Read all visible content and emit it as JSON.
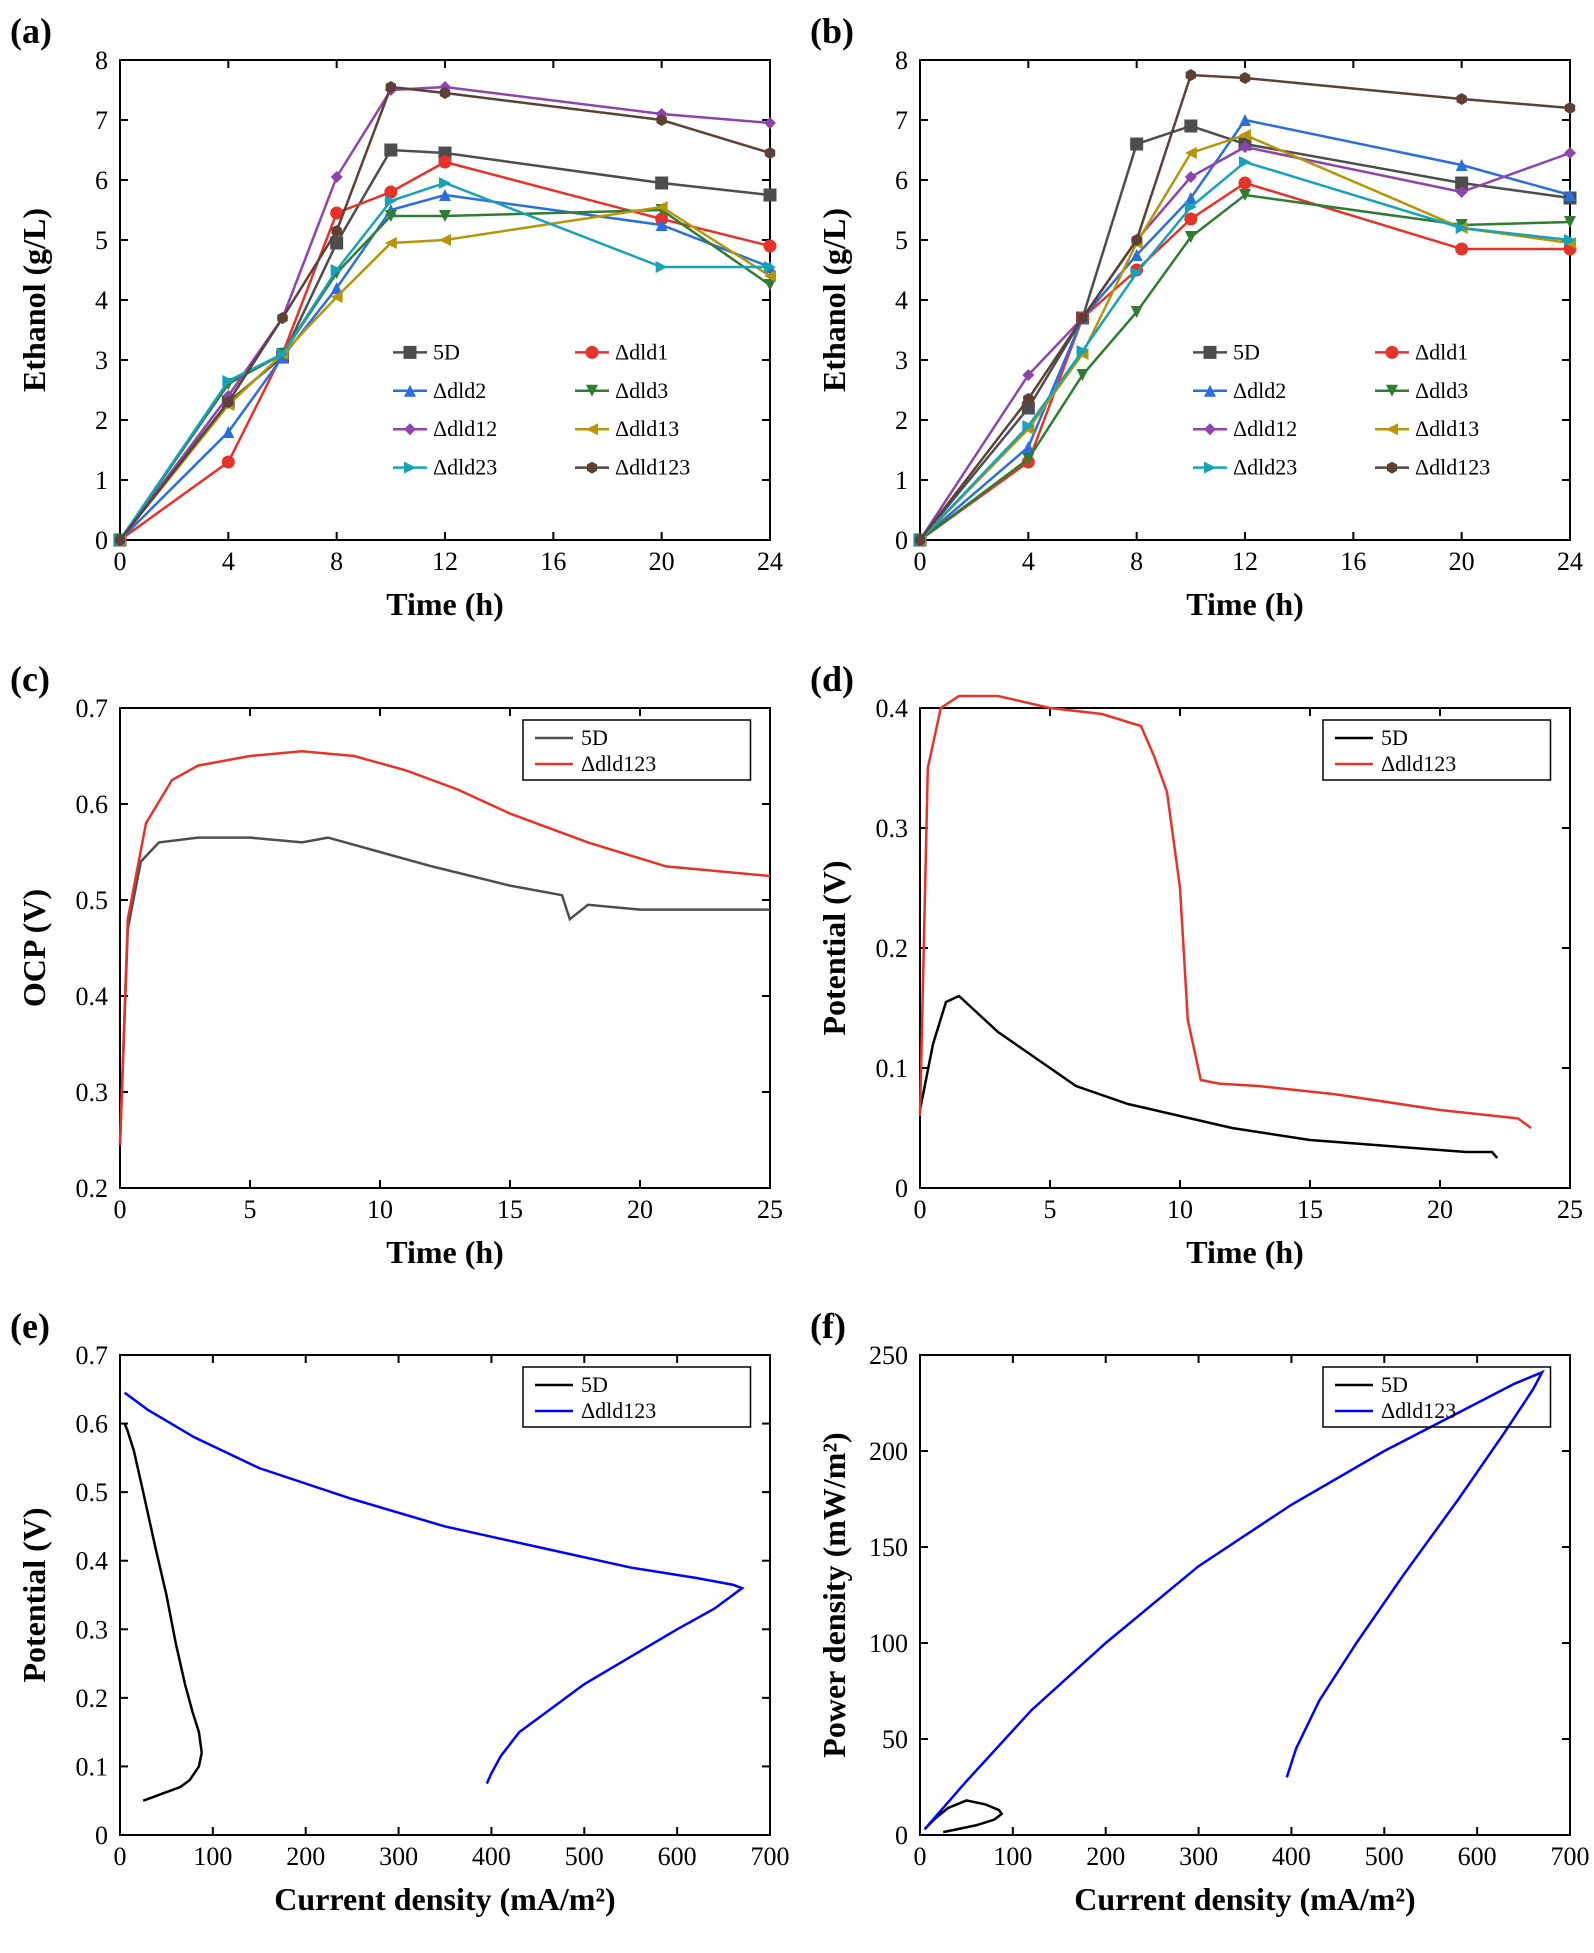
{
  "panels": {
    "a": {
      "label": "(a)",
      "xlabel": "Time (h)",
      "ylabel": "Ethanol (g/L)",
      "xlim": [
        0,
        24
      ],
      "ylim": [
        0,
        8
      ],
      "xticks": [
        0,
        4,
        8,
        12,
        16,
        20,
        24
      ],
      "yticks": [
        0,
        1,
        2,
        3,
        4,
        5,
        6,
        7,
        8
      ],
      "series": [
        {
          "name": "5D",
          "color": "#4d4d4d",
          "marker": "square",
          "x": [
            0,
            4,
            6,
            8,
            10,
            12,
            20,
            24
          ],
          "y": [
            0,
            2.3,
            3.05,
            4.95,
            6.5,
            6.45,
            5.95,
            5.75
          ]
        },
        {
          "name": "Δdld1",
          "color": "#e6332a",
          "marker": "circle",
          "x": [
            0,
            4,
            6,
            8,
            10,
            12,
            20,
            24
          ],
          "y": [
            0,
            1.3,
            3.1,
            5.45,
            5.8,
            6.3,
            5.35,
            4.9
          ]
        },
        {
          "name": "Δdld2",
          "color": "#2a6fdb",
          "marker": "triangle-up",
          "x": [
            0,
            4,
            6,
            8,
            10,
            12,
            20,
            24
          ],
          "y": [
            0,
            1.8,
            3.05,
            4.2,
            5.5,
            5.75,
            5.25,
            4.55
          ]
        },
        {
          "name": "Δdld3",
          "color": "#2e7d32",
          "marker": "triangle-down",
          "x": [
            0,
            4,
            6,
            8,
            10,
            12,
            20,
            24
          ],
          "y": [
            0,
            2.6,
            3.1,
            4.45,
            5.4,
            5.4,
            5.5,
            4.25
          ]
        },
        {
          "name": "Δdld12",
          "color": "#8e44ad",
          "marker": "diamond",
          "x": [
            0,
            4,
            6,
            8,
            10,
            12,
            20,
            24
          ],
          "y": [
            0,
            2.4,
            3.7,
            6.05,
            7.5,
            7.55,
            7.1,
            6.95
          ]
        },
        {
          "name": "Δdld13",
          "color": "#b7950b",
          "marker": "triangle-left",
          "x": [
            0,
            4,
            6,
            8,
            10,
            12,
            20,
            24
          ],
          "y": [
            0,
            2.25,
            3.1,
            4.05,
            4.95,
            5.0,
            5.55,
            4.4
          ]
        },
        {
          "name": "Δdld23",
          "color": "#17a2b8",
          "marker": "triangle-right",
          "x": [
            0,
            4,
            6,
            8,
            10,
            12,
            20,
            24
          ],
          "y": [
            0,
            2.65,
            3.1,
            4.5,
            5.65,
            5.95,
            4.55,
            4.55
          ]
        },
        {
          "name": "Δdld123",
          "color": "#5d4037",
          "marker": "hexagon",
          "x": [
            0,
            4,
            6,
            8,
            10,
            12,
            20,
            24
          ],
          "y": [
            0,
            2.3,
            3.7,
            5.15,
            7.55,
            7.45,
            7.0,
            6.45
          ]
        }
      ]
    },
    "b": {
      "label": "(b)",
      "xlabel": "Time (h)",
      "ylabel": "Ethanol (g/L)",
      "xlim": [
        0,
        24
      ],
      "ylim": [
        0,
        8
      ],
      "xticks": [
        0,
        4,
        8,
        12,
        16,
        20,
        24
      ],
      "yticks": [
        0,
        1,
        2,
        3,
        4,
        5,
        6,
        7,
        8
      ],
      "series": [
        {
          "name": "5D",
          "color": "#4d4d4d",
          "marker": "square",
          "x": [
            0,
            4,
            6,
            8,
            10,
            12,
            20,
            24
          ],
          "y": [
            0,
            2.2,
            3.7,
            6.6,
            6.9,
            6.6,
            5.95,
            5.7
          ]
        },
        {
          "name": "Δdld1",
          "color": "#e6332a",
          "marker": "circle",
          "x": [
            0,
            4,
            6,
            8,
            10,
            12,
            20,
            24
          ],
          "y": [
            0,
            1.3,
            3.7,
            4.5,
            5.35,
            5.95,
            4.85,
            4.85
          ]
        },
        {
          "name": "Δdld2",
          "color": "#2a6fdb",
          "marker": "triangle-up",
          "x": [
            0,
            4,
            6,
            8,
            10,
            12,
            20,
            24
          ],
          "y": [
            0,
            1.55,
            3.7,
            4.75,
            5.7,
            7.0,
            6.25,
            5.75
          ]
        },
        {
          "name": "Δdld3",
          "color": "#2e7d32",
          "marker": "triangle-down",
          "x": [
            0,
            4,
            6,
            8,
            10,
            12,
            20,
            24
          ],
          "y": [
            0,
            1.35,
            2.75,
            3.8,
            5.05,
            5.75,
            5.25,
            5.3
          ]
        },
        {
          "name": "Δdld12",
          "color": "#8e44ad",
          "marker": "diamond",
          "x": [
            0,
            4,
            6,
            8,
            10,
            12,
            20,
            24
          ],
          "y": [
            0,
            2.75,
            3.7,
            5.0,
            6.05,
            6.55,
            5.8,
            6.45
          ]
        },
        {
          "name": "Δdld13",
          "color": "#b7950b",
          "marker": "triangle-left",
          "x": [
            0,
            4,
            6,
            8,
            10,
            12,
            20,
            24
          ],
          "y": [
            0,
            1.85,
            3.1,
            4.95,
            6.45,
            6.75,
            5.2,
            4.95
          ]
        },
        {
          "name": "Δdld23",
          "color": "#17a2b8",
          "marker": "triangle-right",
          "x": [
            0,
            4,
            6,
            8,
            10,
            12,
            20,
            24
          ],
          "y": [
            0,
            1.9,
            3.15,
            4.45,
            5.55,
            6.3,
            5.2,
            5.0
          ]
        },
        {
          "name": "Δdld123",
          "color": "#5d4037",
          "marker": "hexagon",
          "x": [
            0,
            4,
            6,
            8,
            10,
            12,
            20,
            24
          ],
          "y": [
            0,
            2.35,
            3.7,
            5.0,
            7.75,
            7.7,
            7.35,
            7.2
          ]
        }
      ]
    },
    "c": {
      "label": "(c)",
      "xlabel": "Time (h)",
      "ylabel": "OCP (V)",
      "xlim": [
        0,
        25
      ],
      "ylim": [
        0.2,
        0.7
      ],
      "xticks": [
        0,
        5,
        10,
        15,
        20,
        25
      ],
      "yticks": [
        0.2,
        0.3,
        0.4,
        0.5,
        0.6,
        0.7
      ],
      "series": [
        {
          "name": "5D",
          "color": "#4d4d4d",
          "x": [
            0,
            0.3,
            0.8,
            1.5,
            3,
            5,
            7,
            8,
            10,
            12,
            15,
            17,
            17.3,
            18,
            20,
            25
          ],
          "y": [
            0.245,
            0.47,
            0.54,
            0.56,
            0.565,
            0.565,
            0.56,
            0.565,
            0.55,
            0.535,
            0.515,
            0.505,
            0.48,
            0.495,
            0.49,
            0.49
          ]
        },
        {
          "name": "Δdld123",
          "color": "#e6332a",
          "x": [
            0,
            0.3,
            1,
            2,
            3,
            5,
            7,
            9,
            11,
            13,
            15,
            18,
            21,
            25
          ],
          "y": [
            0.245,
            0.48,
            0.58,
            0.625,
            0.64,
            0.65,
            0.655,
            0.65,
            0.635,
            0.615,
            0.59,
            0.56,
            0.535,
            0.525
          ]
        }
      ]
    },
    "d": {
      "label": "(d)",
      "xlabel": "Time (h)",
      "ylabel": "Potential (V)",
      "xlim": [
        0,
        25
      ],
      "ylim": [
        0,
        0.4
      ],
      "xticks": [
        0,
        5,
        10,
        15,
        20,
        25
      ],
      "yticks": [
        0,
        0.1,
        0.2,
        0.3,
        0.4
      ],
      "series": [
        {
          "name": "5D",
          "color": "#000000",
          "x": [
            0,
            0.5,
            1,
            1.5,
            2,
            3,
            4,
            5,
            6,
            8,
            10,
            12,
            15,
            18,
            21,
            22,
            22.2
          ],
          "y": [
            0.065,
            0.12,
            0.155,
            0.16,
            0.15,
            0.13,
            0.115,
            0.1,
            0.085,
            0.07,
            0.06,
            0.05,
            0.04,
            0.035,
            0.03,
            0.03,
            0.025
          ]
        },
        {
          "name": "Δdld123",
          "color": "#e6332a",
          "x": [
            0,
            0.3,
            0.8,
            1.5,
            3,
            5,
            7,
            8.5,
            9,
            9.5,
            10,
            10.3,
            10.8,
            11.5,
            13,
            16,
            20,
            23,
            23.5
          ],
          "y": [
            0.06,
            0.35,
            0.4,
            0.41,
            0.41,
            0.4,
            0.395,
            0.385,
            0.36,
            0.33,
            0.25,
            0.14,
            0.09,
            0.087,
            0.085,
            0.078,
            0.065,
            0.058,
            0.05
          ]
        }
      ]
    },
    "e": {
      "label": "(e)",
      "xlabel": "Current density (mA/m²)",
      "ylabel": "Potential (V)",
      "xlim": [
        0,
        700
      ],
      "ylim": [
        0,
        0.7
      ],
      "xticks": [
        0,
        100,
        200,
        300,
        400,
        500,
        600,
        700
      ],
      "yticks": [
        0,
        0.1,
        0.2,
        0.3,
        0.4,
        0.5,
        0.6,
        0.7
      ],
      "xtitle": "Current density",
      "xunit": "(mA/m²)",
      "series": [
        {
          "name": "5D",
          "color": "#000000",
          "x": [
            5,
            8,
            15,
            25,
            38,
            50,
            60,
            70,
            78,
            85,
            88,
            85,
            80,
            75,
            70,
            65,
            55,
            45,
            35,
            25
          ],
          "y": [
            0.6,
            0.59,
            0.56,
            0.5,
            0.42,
            0.35,
            0.28,
            0.22,
            0.18,
            0.15,
            0.12,
            0.1,
            0.09,
            0.08,
            0.075,
            0.07,
            0.065,
            0.06,
            0.055,
            0.05
          ]
        },
        {
          "name": "Δdld123",
          "color": "#0000ff",
          "x": [
            5,
            30,
            80,
            150,
            250,
            350,
            450,
            550,
            620,
            660,
            670,
            660,
            640,
            600,
            550,
            500,
            460,
            430,
            410,
            400,
            395
          ],
          "y": [
            0.645,
            0.62,
            0.58,
            0.535,
            0.49,
            0.45,
            0.42,
            0.39,
            0.375,
            0.365,
            0.36,
            0.35,
            0.33,
            0.3,
            0.26,
            0.22,
            0.18,
            0.15,
            0.115,
            0.09,
            0.075
          ]
        }
      ]
    },
    "f": {
      "label": "(f)",
      "xlabel": "Current density (mA/m²)",
      "ylabel": "Power density (mW/m²)",
      "xlim": [
        0,
        700
      ],
      "ylim": [
        0,
        250
      ],
      "xticks": [
        0,
        100,
        200,
        300,
        400,
        500,
        600,
        700
      ],
      "yticks": [
        0,
        50,
        100,
        150,
        200,
        250
      ],
      "xtitle": "Current density",
      "xunit": "(mA/m²)",
      "ytitle": "Power density",
      "yunit": "(mW/m²)",
      "series": [
        {
          "name": "5D",
          "color": "#000000",
          "x": [
            5,
            15,
            30,
            50,
            70,
            85,
            88,
            80,
            60,
            40,
            25
          ],
          "y": [
            3,
            8,
            14,
            18,
            16,
            13,
            11,
            8,
            5,
            3,
            1.5
          ]
        },
        {
          "name": "Δdld123",
          "color": "#0000ff",
          "x": [
            5,
            50,
            120,
            200,
            300,
            400,
            500,
            580,
            640,
            665,
            670,
            660,
            630,
            580,
            520,
            470,
            430,
            405,
            395
          ],
          "y": [
            3,
            28,
            65,
            100,
            140,
            172,
            200,
            220,
            235,
            240,
            241,
            232,
            210,
            175,
            135,
            100,
            70,
            45,
            30
          ]
        }
      ]
    }
  },
  "colors": {
    "bg": "#ffffff",
    "axis": "#000000"
  },
  "fonts": {
    "label_size": 36,
    "tick_size": 26,
    "axis_title_size": 32
  }
}
